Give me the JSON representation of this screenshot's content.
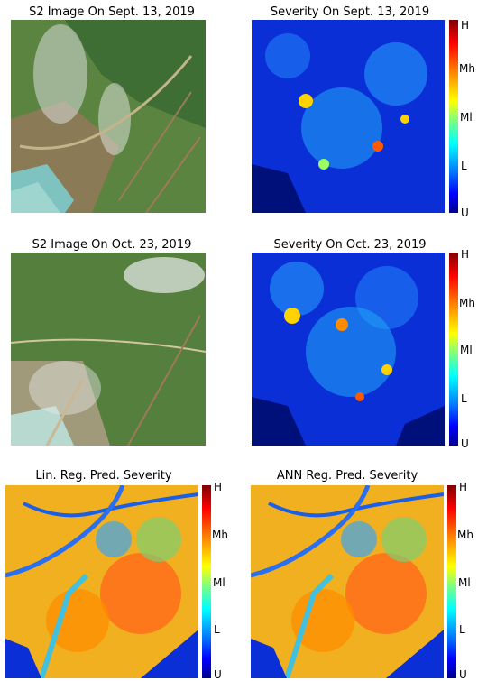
{
  "panels": {
    "s2_sep": {
      "title": "S2 Image On Sept. 13, 2019"
    },
    "sev_sep": {
      "title": "Severity On Sept. 13, 2019"
    },
    "s2_oct": {
      "title": "S2 Image On Oct. 23, 2019"
    },
    "sev_oct": {
      "title": "Severity On Oct. 23, 2019"
    },
    "lin_pred": {
      "title": "Lin. Reg. Pred. Severity"
    },
    "ann_pred": {
      "title": "ANN Reg. Pred. Severity"
    }
  },
  "colorbar": {
    "ticks": [
      "H",
      "Mh",
      "Ml",
      "L",
      "U"
    ],
    "colors": [
      "#7f0000",
      "#ff0000",
      "#ff8c00",
      "#ffff00",
      "#7fff7f",
      "#00ffff",
      "#0080ff",
      "#0000ff",
      "#00008f"
    ]
  }
}
